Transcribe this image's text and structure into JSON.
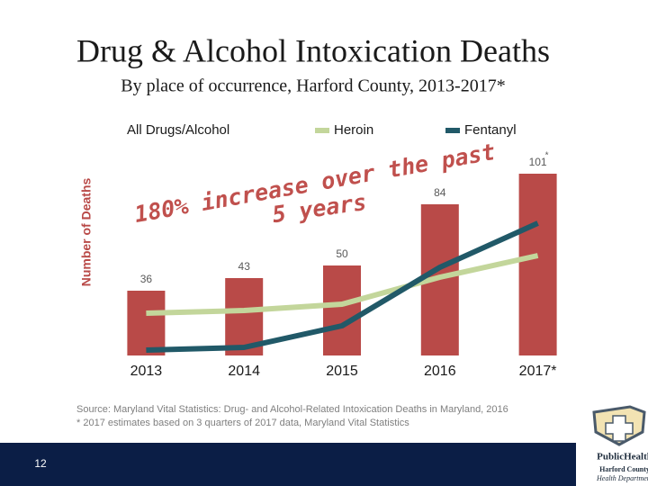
{
  "chart_data": {
    "type": "bar",
    "title": "Drug & Alcohol Intoxication Deaths",
    "subtitle": "By place of occurrence, Harford County, 2013-2017*",
    "ylabel": "Number of Deaths",
    "categories": [
      "2013",
      "2014",
      "2015",
      "2016",
      "2017*"
    ],
    "series": [
      {
        "name": "All Drugs/Alcohol",
        "type": "bar",
        "color": "#b94a48",
        "values": [
          36,
          43,
          50,
          84,
          101
        ]
      },
      {
        "name": "Heroin",
        "type": "line",
        "color": "#c3d69b",
        "values": [
          23.5,
          25,
          28.5,
          43.5,
          55.5
        ]
      },
      {
        "name": "Fentanyl",
        "type": "line",
        "color": "#215968",
        "values": [
          3,
          4.5,
          16.5,
          49,
          73.5
        ]
      }
    ],
    "ylim": [
      0,
      120
    ],
    "grid": false,
    "legend": "top",
    "annotations": [
      "180% increase over the past",
      "5 years",
      "*"
    ]
  },
  "source": [
    "Source: Maryland Vital Statistics: Drug- and Alcohol-Related Intoxication Deaths in Maryland, 2016",
    "* 2017 estimates based on 3 quarters of 2017 data, Maryland Vital Statistics"
  ],
  "slide_number": "12",
  "logo": [
    "PublicHealth",
    "Harford County",
    "Health Department"
  ]
}
